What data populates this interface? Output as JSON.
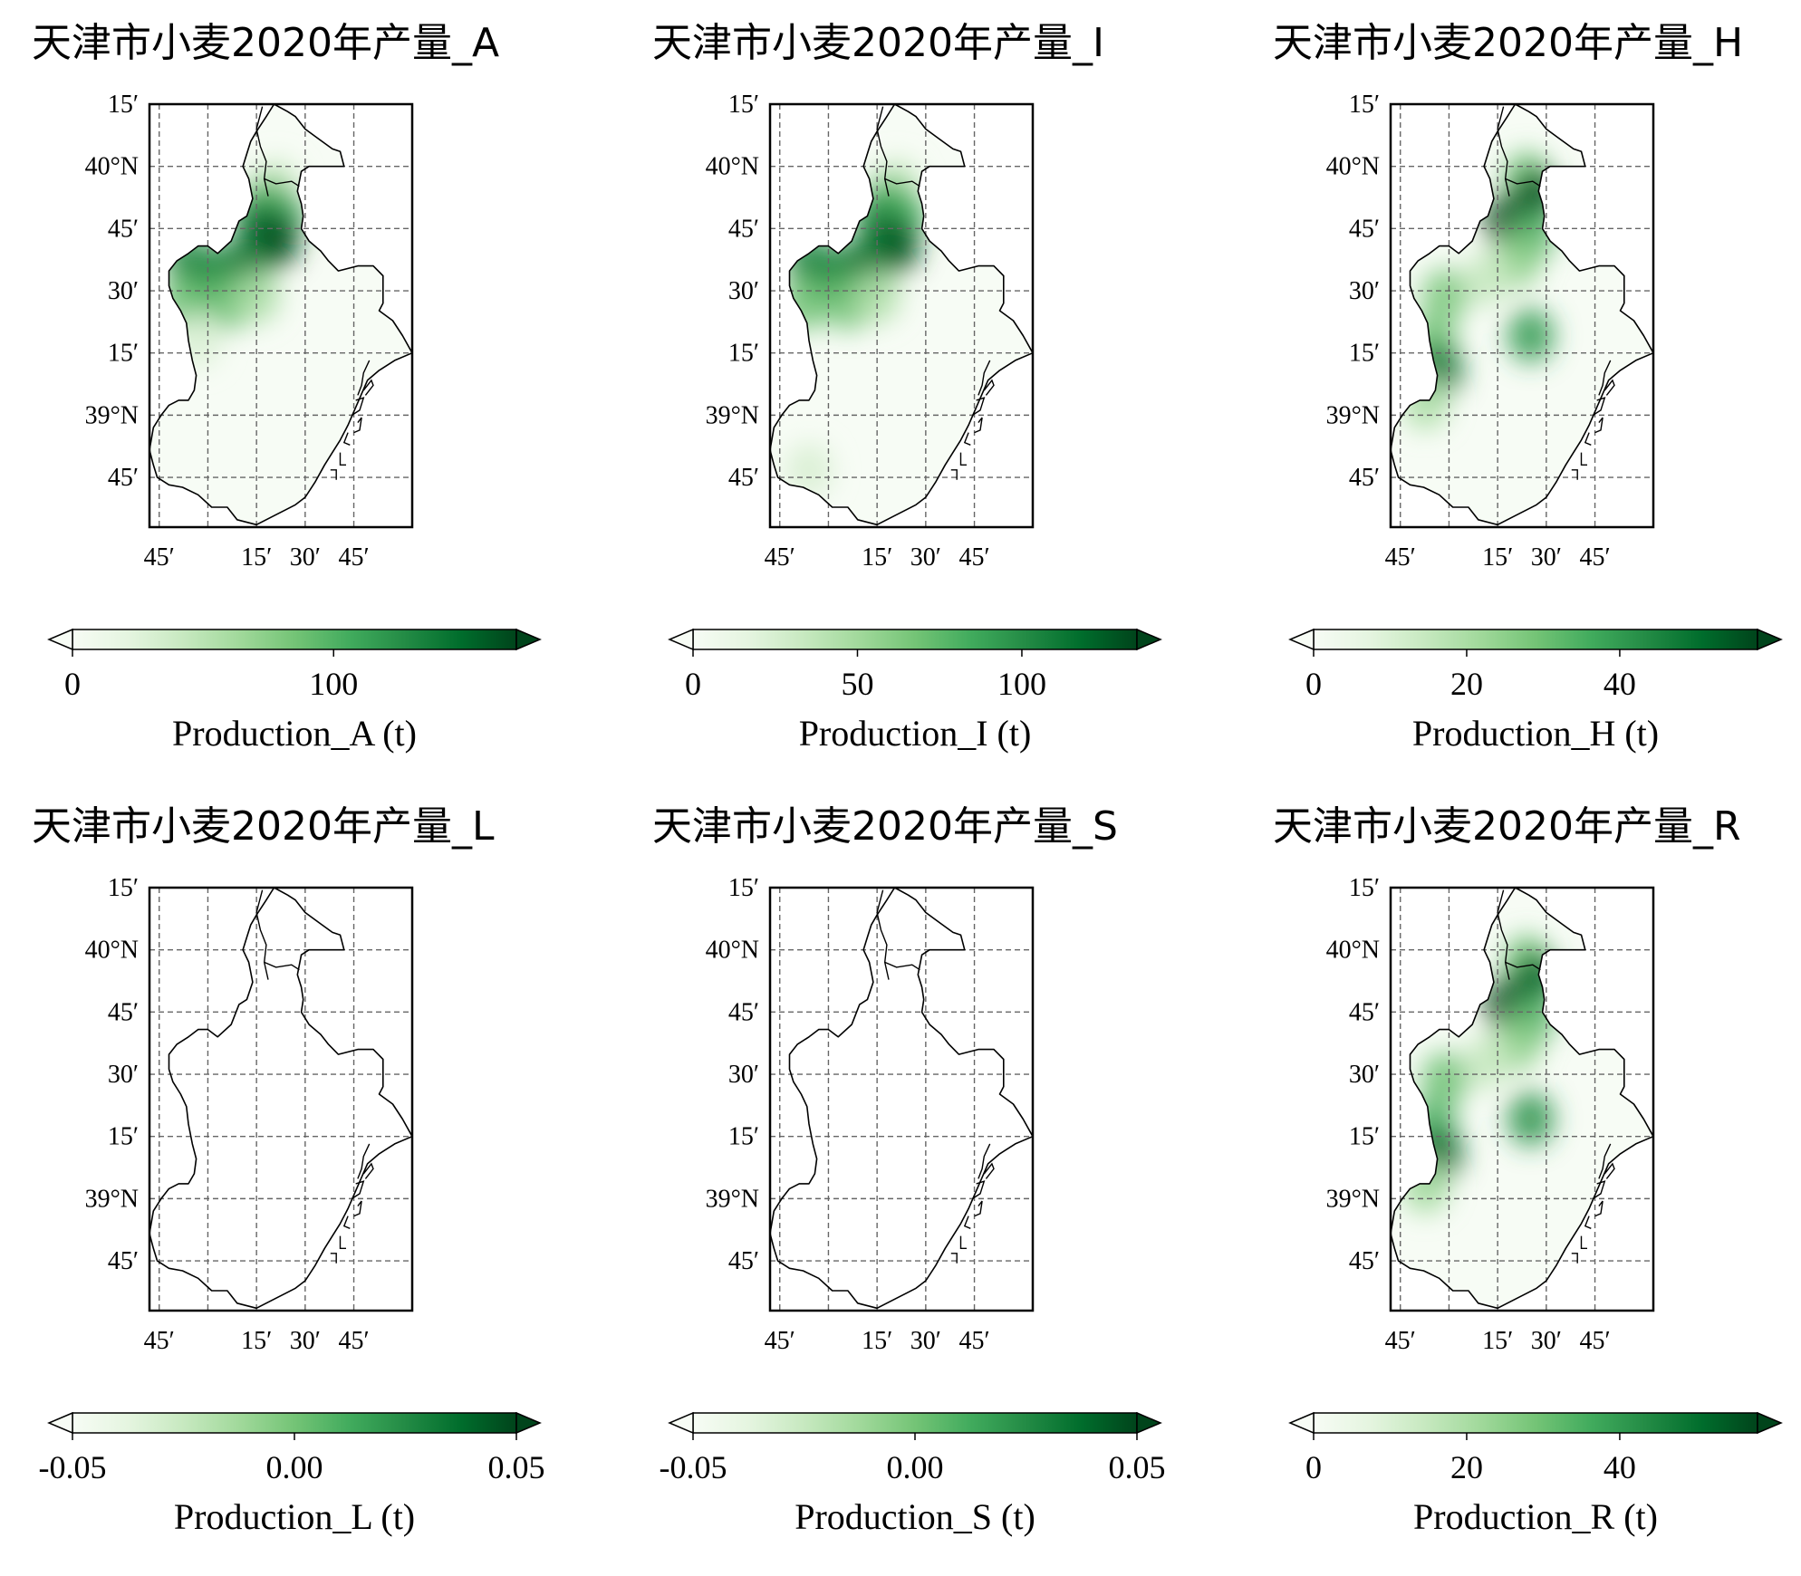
{
  "figure": {
    "panels": [
      {
        "title": "天津市小麦2020年产量_A",
        "colorbar": {
          "label": "Production_A (t)",
          "ticks": [
            "0",
            "100"
          ],
          "tick_values": [
            0,
            100
          ],
          "range": [
            0,
            170
          ],
          "extend": "both"
        },
        "heat": [
          {
            "lon": 117.35,
            "lat": 39.92,
            "v": 40
          },
          {
            "lon": 117.3,
            "lat": 39.85,
            "v": 90
          },
          {
            "lon": 117.38,
            "lat": 39.8,
            "v": 110
          },
          {
            "lon": 117.25,
            "lat": 39.78,
            "v": 130
          },
          {
            "lon": 117.35,
            "lat": 39.7,
            "v": 170
          },
          {
            "lon": 117.28,
            "lat": 39.68,
            "v": 160
          },
          {
            "lon": 117.2,
            "lat": 39.6,
            "v": 130
          },
          {
            "lon": 117.1,
            "lat": 39.58,
            "v": 140
          },
          {
            "lon": 117.0,
            "lat": 39.55,
            "v": 120
          },
          {
            "lon": 116.9,
            "lat": 39.62,
            "v": 130
          },
          {
            "lon": 116.88,
            "lat": 39.45,
            "v": 90
          },
          {
            "lon": 117.1,
            "lat": 39.45,
            "v": 90
          },
          {
            "lon": 117.25,
            "lat": 39.48,
            "v": 60
          },
          {
            "lon": 116.95,
            "lat": 39.3,
            "v": 30
          }
        ]
      },
      {
        "title": "天津市小麦2020年产量_I",
        "colorbar": {
          "label": "Production_I (t)",
          "ticks": [
            "0",
            "50",
            "100"
          ],
          "tick_values": [
            0,
            50,
            100
          ],
          "range": [
            0,
            135
          ],
          "extend": "both"
        },
        "heat": [
          {
            "lon": 117.35,
            "lat": 39.92,
            "v": 35
          },
          {
            "lon": 117.3,
            "lat": 39.85,
            "v": 75
          },
          {
            "lon": 117.38,
            "lat": 39.8,
            "v": 85
          },
          {
            "lon": 117.25,
            "lat": 39.78,
            "v": 100
          },
          {
            "lon": 117.35,
            "lat": 39.68,
            "v": 130
          },
          {
            "lon": 117.28,
            "lat": 39.66,
            "v": 125
          },
          {
            "lon": 117.2,
            "lat": 39.6,
            "v": 105
          },
          {
            "lon": 117.1,
            "lat": 39.58,
            "v": 115
          },
          {
            "lon": 117.0,
            "lat": 39.55,
            "v": 95
          },
          {
            "lon": 116.9,
            "lat": 39.62,
            "v": 105
          },
          {
            "lon": 116.88,
            "lat": 39.45,
            "v": 70
          },
          {
            "lon": 117.1,
            "lat": 39.45,
            "v": 70
          },
          {
            "lon": 117.25,
            "lat": 39.48,
            "v": 45
          },
          {
            "lon": 116.9,
            "lat": 38.78,
            "v": 25
          }
        ]
      },
      {
        "title": "天津市小麦2020年产量_H",
        "colorbar": {
          "label": "Production_H (t)",
          "ticks": [
            "0",
            "20",
            "40"
          ],
          "tick_values": [
            0,
            20,
            40
          ],
          "range": [
            0,
            58
          ],
          "extend": "both"
        },
        "heat": [
          {
            "lon": 117.4,
            "lat": 39.95,
            "v": 30
          },
          {
            "lon": 117.45,
            "lat": 39.88,
            "v": 55
          },
          {
            "lon": 117.3,
            "lat": 39.78,
            "v": 58
          },
          {
            "lon": 117.42,
            "lat": 39.72,
            "v": 35
          },
          {
            "lon": 117.35,
            "lat": 39.62,
            "v": 25
          },
          {
            "lon": 117.42,
            "lat": 39.32,
            "v": 40
          },
          {
            "lon": 116.98,
            "lat": 39.48,
            "v": 28
          },
          {
            "lon": 116.92,
            "lat": 39.3,
            "v": 30
          },
          {
            "lon": 116.95,
            "lat": 39.18,
            "v": 50
          },
          {
            "lon": 116.88,
            "lat": 39.05,
            "v": 20
          },
          {
            "lon": 117.2,
            "lat": 39.55,
            "v": 15
          }
        ]
      },
      {
        "title": "天津市小麦2020年产量_L",
        "colorbar": {
          "label": "Production_L (t)",
          "ticks": [
            "-0.05",
            "0.00",
            "0.05"
          ],
          "tick_values": [
            -0.05,
            0.0,
            0.05
          ],
          "range": [
            -0.05,
            0.05
          ],
          "extend": "both"
        },
        "heat": []
      },
      {
        "title": "天津市小麦2020年产量_S",
        "colorbar": {
          "label": "Production_S (t)",
          "ticks": [
            "-0.05",
            "0.00",
            "0.05"
          ],
          "tick_values": [
            -0.05,
            0.0,
            0.05
          ],
          "range": [
            -0.05,
            0.05
          ],
          "extend": "both"
        },
        "heat": []
      },
      {
        "title": "天津市小麦2020年产量_R",
        "colorbar": {
          "label": "Production_R (t)",
          "ticks": [
            "0",
            "20",
            "40"
          ],
          "tick_values": [
            0,
            20,
            40
          ],
          "range": [
            0,
            58
          ],
          "extend": "both"
        },
        "heat": [
          {
            "lon": 117.4,
            "lat": 39.95,
            "v": 30
          },
          {
            "lon": 117.45,
            "lat": 39.88,
            "v": 52
          },
          {
            "lon": 117.3,
            "lat": 39.78,
            "v": 58
          },
          {
            "lon": 117.42,
            "lat": 39.72,
            "v": 35
          },
          {
            "lon": 117.35,
            "lat": 39.62,
            "v": 25
          },
          {
            "lon": 117.42,
            "lat": 39.32,
            "v": 42
          },
          {
            "lon": 116.98,
            "lat": 39.48,
            "v": 30
          },
          {
            "lon": 116.92,
            "lat": 39.3,
            "v": 35
          },
          {
            "lon": 116.95,
            "lat": 39.18,
            "v": 52
          },
          {
            "lon": 116.88,
            "lat": 39.05,
            "v": 22
          },
          {
            "lon": 117.2,
            "lat": 39.55,
            "v": 15
          }
        ]
      }
    ],
    "axes": {
      "lat_ticks": [
        "15′",
        "40°N",
        "45′",
        "30′",
        "15′",
        "39°N",
        "45′"
      ],
      "lat_tick_values": [
        40.25,
        40.0,
        39.75,
        39.5,
        39.25,
        39.0,
        38.75
      ],
      "lon_ticks": [
        "45′",
        "15′",
        "30′",
        "45′"
      ],
      "lon_tick_values": [
        116.75,
        117.25,
        117.5,
        117.75
      ],
      "lon_grid_values": [
        116.75,
        117.0,
        117.25,
        117.5,
        117.75
      ],
      "lon_range": [
        116.7,
        118.05
      ],
      "lat_range": [
        38.55,
        40.25
      ],
      "gridlines": true
    },
    "colormap": {
      "name": "Greens",
      "stops": [
        "#f7fcf5",
        "#e5f5e0",
        "#c7e9c0",
        "#a1d99b",
        "#74c476",
        "#41ab5d",
        "#238b45",
        "#006d2c",
        "#00441b"
      ]
    },
    "boundary": [
      [
        117.34,
        40.25
      ],
      [
        117.41,
        40.22
      ],
      [
        117.45,
        40.2
      ],
      [
        117.5,
        40.15
      ],
      [
        117.57,
        40.11
      ],
      [
        117.64,
        40.07
      ],
      [
        117.68,
        40.06
      ],
      [
        117.7,
        40.0
      ],
      [
        117.66,
        40.0
      ],
      [
        117.61,
        40.0
      ],
      [
        117.52,
        40.0
      ],
      [
        117.48,
        39.98
      ],
      [
        117.46,
        39.9
      ],
      [
        117.48,
        39.85
      ],
      [
        117.49,
        39.8
      ],
      [
        117.48,
        39.75
      ],
      [
        117.52,
        39.7
      ],
      [
        117.58,
        39.66
      ],
      [
        117.62,
        39.62
      ],
      [
        117.67,
        39.58
      ],
      [
        117.77,
        39.6
      ],
      [
        117.85,
        39.6
      ],
      [
        117.9,
        39.56
      ],
      [
        117.9,
        39.45
      ],
      [
        117.88,
        39.42
      ],
      [
        117.95,
        39.38
      ],
      [
        118.0,
        39.32
      ],
      [
        118.05,
        39.25
      ],
      [
        117.96,
        39.22
      ],
      [
        117.88,
        39.18
      ],
      [
        117.82,
        39.14
      ],
      [
        117.77,
        39.05
      ],
      [
        117.72,
        38.96
      ],
      [
        117.68,
        38.9
      ],
      [
        117.64,
        38.85
      ],
      [
        117.6,
        38.8
      ],
      [
        117.55,
        38.73
      ],
      [
        117.5,
        38.67
      ],
      [
        117.45,
        38.64
      ],
      [
        117.4,
        38.62
      ],
      [
        117.35,
        38.6
      ],
      [
        117.25,
        38.56
      ],
      [
        117.15,
        38.58
      ],
      [
        117.1,
        38.63
      ],
      [
        117.02,
        38.63
      ],
      [
        116.95,
        38.68
      ],
      [
        116.87,
        38.71
      ],
      [
        116.8,
        38.72
      ],
      [
        116.74,
        38.75
      ],
      [
        116.72,
        38.8
      ],
      [
        116.7,
        38.86
      ],
      [
        116.72,
        38.95
      ],
      [
        116.76,
        39.0
      ],
      [
        116.8,
        39.04
      ],
      [
        116.85,
        39.06
      ],
      [
        116.9,
        39.06
      ],
      [
        116.93,
        39.1
      ],
      [
        116.94,
        39.16
      ],
      [
        116.92,
        39.22
      ],
      [
        116.9,
        39.3
      ],
      [
        116.89,
        39.37
      ],
      [
        116.86,
        39.42
      ],
      [
        116.82,
        39.47
      ],
      [
        116.8,
        39.52
      ],
      [
        116.8,
        39.58
      ],
      [
        116.84,
        39.62
      ],
      [
        116.9,
        39.65
      ],
      [
        116.95,
        39.68
      ],
      [
        117.0,
        39.68
      ],
      [
        117.05,
        39.65
      ],
      [
        117.12,
        39.7
      ],
      [
        117.16,
        39.78
      ],
      [
        117.2,
        39.8
      ],
      [
        117.23,
        39.87
      ],
      [
        117.21,
        39.95
      ],
      [
        117.18,
        40.0
      ],
      [
        117.2,
        40.05
      ],
      [
        117.22,
        40.1
      ],
      [
        117.25,
        40.14
      ],
      [
        117.3,
        40.2
      ],
      [
        117.34,
        40.25
      ]
    ],
    "districts": [
      [
        [
          117.28,
          40.24
        ],
        [
          117.25,
          40.15
        ],
        [
          117.27,
          40.08
        ],
        [
          117.3,
          40.02
        ],
        [
          117.29,
          39.95
        ],
        [
          117.31,
          39.88
        ]
      ],
      [
        [
          117.29,
          39.95
        ],
        [
          117.35,
          39.93
        ],
        [
          117.43,
          39.94
        ],
        [
          117.47,
          39.92
        ]
      ]
    ],
    "port": [
      [
        [
          117.83,
          39.22
        ],
        [
          117.8,
          39.17
        ],
        [
          117.79,
          39.12
        ],
        [
          117.77,
          39.08
        ]
      ],
      [
        [
          117.8,
          39.1
        ],
        [
          117.84,
          39.14
        ],
        [
          117.85,
          39.12
        ],
        [
          117.81,
          39.08
        ]
      ],
      [
        [
          117.76,
          39.06
        ],
        [
          117.8,
          39.07
        ],
        [
          117.78,
          39.02
        ],
        [
          117.74,
          39.0
        ]
      ],
      [
        [
          117.77,
          38.97
        ],
        [
          117.79,
          38.99
        ],
        [
          117.78,
          38.94
        ],
        [
          117.75,
          38.93
        ]
      ],
      [
        [
          117.72,
          38.93
        ],
        [
          117.7,
          38.89
        ],
        [
          117.73,
          38.88
        ]
      ],
      [
        [
          117.68,
          38.85
        ],
        [
          117.68,
          38.8
        ],
        [
          117.71,
          38.8
        ]
      ],
      [
        [
          117.63,
          38.78
        ],
        [
          117.66,
          38.78
        ],
        [
          117.66,
          38.74
        ]
      ]
    ]
  }
}
